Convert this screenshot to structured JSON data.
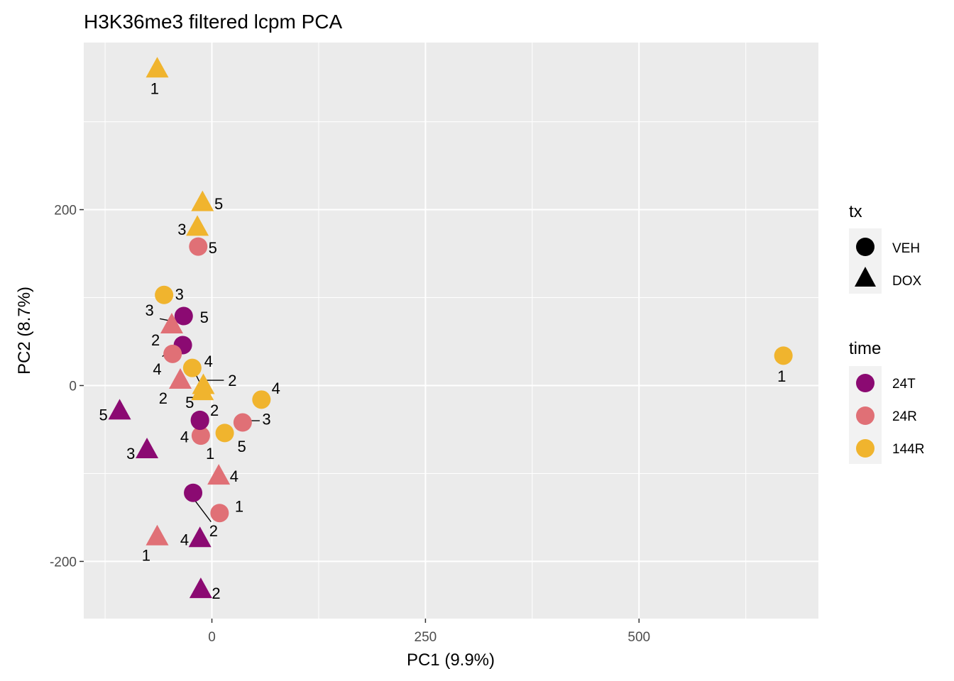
{
  "chart_data": {
    "type": "scatter",
    "title": "H3K36me3 filtered lcpm PCA",
    "xlabel": "PC1 (9.9%)",
    "ylabel": "PC2 (8.7%)",
    "xlim": [
      -150,
      710
    ],
    "ylim": [
      -265,
      390
    ],
    "x_ticks": [
      0,
      250,
      500
    ],
    "y_ticks": [
      -200,
      0,
      200
    ],
    "legend_tx": {
      "title": "tx",
      "entries": [
        {
          "name": "VEH",
          "shape": "circle"
        },
        {
          "name": "DOX",
          "shape": "triangle"
        }
      ]
    },
    "legend_time": {
      "title": "time",
      "entries": [
        {
          "name": "24T",
          "color": "#8b0a72"
        },
        {
          "name": "24R",
          "color": "#e07076"
        },
        {
          "name": "144R",
          "color": "#f0b42e"
        }
      ]
    },
    "points": [
      {
        "x": -64,
        "y": 360,
        "tx": "DOX",
        "time": "144R",
        "label": "1",
        "lx": -67,
        "ly": 338
      },
      {
        "x": -11,
        "y": 208,
        "tx": "DOX",
        "time": "144R",
        "label": "5",
        "lx": 8,
        "ly": 207
      },
      {
        "x": -17,
        "y": 180,
        "tx": "DOX",
        "time": "144R",
        "label": "3",
        "lx": -35,
        "ly": 178
      },
      {
        "x": -16,
        "y": 158,
        "tx": "VEH",
        "time": "24R",
        "label": "5",
        "lx": 1,
        "ly": 157
      },
      {
        "x": -56,
        "y": 103,
        "tx": "VEH",
        "time": "144R",
        "label": "3",
        "lx": -38,
        "ly": 104
      },
      {
        "x": -33,
        "y": 79,
        "tx": "VEH",
        "time": "24T",
        "label": "5",
        "lx": -9,
        "ly": 78
      },
      {
        "x": -47,
        "y": 69,
        "tx": "DOX",
        "time": "24R",
        "label": "3",
        "lx": -73,
        "ly": 86,
        "line": [
          -51,
          74,
          -61,
          76
        ]
      },
      {
        "x": -34,
        "y": 46,
        "tx": "VEH",
        "time": "24T",
        "label": "2",
        "lx": -66,
        "ly": 52
      },
      {
        "x": -46,
        "y": 36,
        "tx": "VEH",
        "time": "24R",
        "label": "4",
        "lx": -64,
        "ly": 19,
        "line": [
          -46,
          42,
          -58,
          33
        ]
      },
      {
        "x": -23,
        "y": 20,
        "tx": "VEH",
        "time": "144R",
        "label": "4",
        "lx": -4,
        "ly": 28
      },
      {
        "x": -37,
        "y": 6,
        "tx": "DOX",
        "time": "24R",
        "label": "2",
        "lx": -57,
        "ly": -14
      },
      {
        "x": -10,
        "y": 0,
        "tx": "DOX",
        "time": "144R",
        "label": "2",
        "lx": 24,
        "ly": 6,
        "line": [
          -6,
          6,
          14,
          6
        ]
      },
      {
        "x": -11,
        "y": -7,
        "tx": "DOX",
        "time": "144R",
        "label": "5",
        "lx": -26,
        "ly": -19,
        "line": [
          -20,
          15,
          -10,
          -5
        ]
      },
      {
        "x": 58,
        "y": -16,
        "tx": "VEH",
        "time": "144R",
        "label": "4",
        "lx": 75,
        "ly": -3
      },
      {
        "x": -108,
        "y": -29,
        "tx": "DOX",
        "time": "24T",
        "label": "5",
        "lx": -127,
        "ly": -33
      },
      {
        "x": -14,
        "y": -39,
        "tx": "VEH",
        "time": "24T",
        "label": "2",
        "lx": 3,
        "ly": -28
      },
      {
        "x": 36,
        "y": -42,
        "tx": "VEH",
        "time": "24R",
        "label": "3",
        "lx": 64,
        "ly": -38,
        "line": [
          40,
          -40,
          56,
          -40
        ]
      },
      {
        "x": 15,
        "y": -54,
        "tx": "VEH",
        "time": "144R",
        "label": "5",
        "lx": 35,
        "ly": -69
      },
      {
        "x": -13,
        "y": -57,
        "tx": "VEH",
        "time": "24R",
        "label": "4",
        "lx": -32,
        "ly": -58
      },
      {
        "x": -14,
        "y": -40,
        "tx": "VEH",
        "time": "24T",
        "label": "1",
        "lx": -2,
        "ly": -77,
        "line": [
          -14,
          -40,
          -6,
          -62
        ]
      },
      {
        "x": -76,
        "y": -73,
        "tx": "DOX",
        "time": "24T",
        "label": "3",
        "lx": -95,
        "ly": -77
      },
      {
        "x": 8,
        "y": -103,
        "tx": "DOX",
        "time": "24R",
        "label": "4",
        "lx": 26,
        "ly": -103
      },
      {
        "x": -22,
        "y": -122,
        "tx": "VEH",
        "time": "24T",
        "label": "2",
        "lx": 2,
        "ly": -165,
        "line": [
          -22,
          -128,
          -1,
          -155
        ]
      },
      {
        "x": 9,
        "y": -145,
        "tx": "VEH",
        "time": "24R",
        "label": "1",
        "lx": 32,
        "ly": -137
      },
      {
        "x": -64,
        "y": -172,
        "tx": "DOX",
        "time": "24R",
        "label": "1",
        "lx": -77,
        "ly": -193
      },
      {
        "x": -14,
        "y": -174,
        "tx": "DOX",
        "time": "24T",
        "label": "4",
        "lx": -32,
        "ly": -175
      },
      {
        "x": -13,
        "y": -232,
        "tx": "DOX",
        "time": "24T",
        "label": "2",
        "lx": 5,
        "ly": -236
      },
      {
        "x": 669,
        "y": 34,
        "tx": "VEH",
        "time": "144R",
        "label": "1",
        "lx": 667,
        "ly": 11
      }
    ]
  }
}
